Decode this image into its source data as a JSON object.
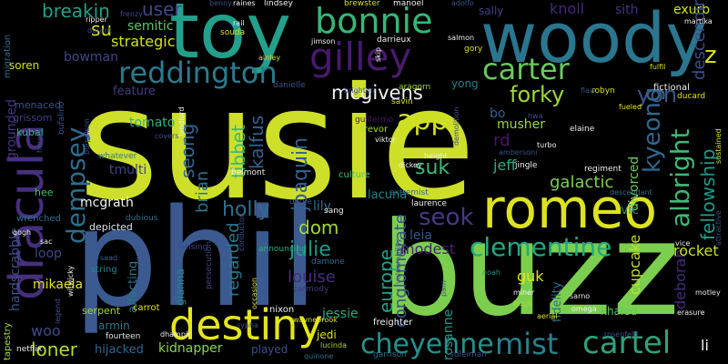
{
  "words": [
    {
      "text": "susie",
      "color": "#cddf29",
      "rotated": false
    },
    {
      "text": "phil",
      "color": "#3b5a8f",
      "rotated": false
    },
    {
      "text": "buzz",
      "color": "#7ccf4e",
      "rotated": false
    },
    {
      "text": "woody",
      "color": "#2a768e",
      "rotated": false
    },
    {
      "text": "toy",
      "color": "#23a08c",
      "rotated": false
    },
    {
      "text": "dracula",
      "color": "#46307e",
      "rotated": true
    },
    {
      "text": "romeo",
      "color": "#dde320",
      "rotated": false
    },
    {
      "text": "destiny",
      "color": "#e3e51c",
      "rotated": false
    },
    {
      "text": "bonnie",
      "color": "#35b779",
      "rotated": false
    },
    {
      "text": "gilley",
      "color": "#481a6c",
      "rotated": false
    },
    {
      "text": "reddington",
      "color": "#2b7b8e",
      "rotated": false
    },
    {
      "text": "carter",
      "color": "#67cc5c",
      "rotated": false
    },
    {
      "text": "app",
      "color": "#d0e11c",
      "rotated": false
    },
    {
      "text": "mist",
      "color": "#26828e",
      "rotated": false
    },
    {
      "text": "cartel",
      "color": "#2da37d",
      "rotated": false
    },
    {
      "text": "cheyenne",
      "color": "#26918c",
      "rotated": false
    },
    {
      "text": "clementine",
      "color": "#22a884",
      "rotated": false
    },
    {
      "text": "dempsey",
      "color": "#2e6d8e",
      "rotated": true
    },
    {
      "text": "albright",
      "color": "#40ba75",
      "rotated": true
    },
    {
      "text": "mcgivens",
      "color": "#f1f1f1",
      "rotated": false
    },
    {
      "text": "forky",
      "color": "#9dd93b",
      "rotated": false
    },
    {
      "text": "yon",
      "color": "#39558c",
      "rotated": false
    },
    {
      "text": "kyeong",
      "color": "#31688e",
      "rotated": true
    },
    {
      "text": "fellowship",
      "color": "#1f9a8a",
      "rotated": true
    },
    {
      "text": "joaquin",
      "color": "#355f8d",
      "rotated": true
    },
    {
      "text": "seok",
      "color": "#443a83",
      "rotated": false
    },
    {
      "text": "suk",
      "color": "#3bbb75",
      "rotated": false
    },
    {
      "text": "jeff",
      "color": "#2ab07f",
      "rotated": false
    },
    {
      "text": "galactic",
      "color": "#7ad151",
      "rotated": false
    },
    {
      "text": "europe",
      "color": "#1fa188",
      "rotated": true
    },
    {
      "text": "conglomerate",
      "color": "#3b528b",
      "rotated": true
    },
    {
      "text": "julie",
      "color": "#1e9b8a",
      "rotated": false
    },
    {
      "text": "louise",
      "color": "#472d7b",
      "rotated": false
    },
    {
      "text": "dom",
      "color": "#a0da39",
      "rotated": false
    },
    {
      "text": "holly",
      "color": "#2e6e8e",
      "rotated": false
    },
    {
      "text": "leia",
      "color": "#38588c",
      "rotated": false
    },
    {
      "text": "modest",
      "color": "#481f70",
      "rotated": false
    },
    {
      "text": "jessie",
      "color": "#28ae80",
      "rotated": false
    },
    {
      "text": "regarded",
      "color": "#2a778e",
      "rotated": true
    },
    {
      "text": "tibbet",
      "color": "#38b977",
      "rotated": true
    },
    {
      "text": "kalfus",
      "color": "#34608d",
      "rotated": true
    },
    {
      "text": "seong",
      "color": "#31668e",
      "rotated": true
    },
    {
      "text": "brian",
      "color": "#2d708e",
      "rotated": true
    },
    {
      "text": "strategic",
      "color": "#d2e21b",
      "rotated": false
    },
    {
      "text": "breakin",
      "color": "#20a386",
      "rotated": false
    },
    {
      "text": "user",
      "color": "#3e4989",
      "rotated": false
    },
    {
      "text": "su",
      "color": "#dfe318",
      "rotated": false
    },
    {
      "text": "bowman",
      "color": "#3f4788",
      "rotated": false
    },
    {
      "text": "semitic",
      "color": "#5cc863",
      "rotated": false
    },
    {
      "text": "feature",
      "color": "#443b84",
      "rotated": false
    },
    {
      "text": "tomato",
      "color": "#2db27d",
      "rotated": false
    },
    {
      "text": "tmulti",
      "color": "#404688",
      "rotated": false
    },
    {
      "text": "mcgrath",
      "color": "#f4f4f4",
      "rotated": false
    },
    {
      "text": "woo",
      "color": "#3e4a89",
      "rotated": false
    },
    {
      "text": "loner",
      "color": "#b5de2b",
      "rotated": false
    },
    {
      "text": "hijacked",
      "color": "#31678e",
      "rotated": false
    },
    {
      "text": "kidnapper",
      "color": "#85d54a",
      "rotated": false
    },
    {
      "text": "played",
      "color": "#3a538b",
      "rotated": false
    },
    {
      "text": "mikaela",
      "color": "#e7e419",
      "rotated": false
    },
    {
      "text": "loop",
      "color": "#3f4889",
      "rotated": false
    },
    {
      "text": "hardscrabble",
      "color": "#3a548c",
      "rotated": true
    },
    {
      "text": "grounded",
      "color": "#46337f",
      "rotated": true
    },
    {
      "text": "knoll",
      "color": "#472a7a",
      "rotated": false
    },
    {
      "text": "sith",
      "color": "#453581",
      "rotated": false
    },
    {
      "text": "exurb",
      "color": "#d8e219",
      "rotated": false
    },
    {
      "text": "descending",
      "color": "#3c4f8a",
      "rotated": true
    },
    {
      "text": "sally",
      "color": "#433e85",
      "rotated": false
    },
    {
      "text": "musher",
      "color": "#9bd93c",
      "rotated": false
    },
    {
      "text": "divorced",
      "color": "#6ccd5a",
      "rotated": true
    },
    {
      "text": "cupcake",
      "color": "#c2df23",
      "rotated": true
    },
    {
      "text": "deborah",
      "color": "#472c7a",
      "rotated": true
    },
    {
      "text": "rocket",
      "color": "#cae11f",
      "rotated": false
    },
    {
      "text": "khaled",
      "color": "#5ec962",
      "rotated": false
    },
    {
      "text": "vic",
      "color": "#23898e",
      "rotated": false
    },
    {
      "text": "guk",
      "color": "#e5e419",
      "rotated": false
    },
    {
      "text": "fidelity",
      "color": "#2c728e",
      "rotated": true
    },
    {
      "text": "armin",
      "color": "#2a788e",
      "rotated": false
    },
    {
      "text": "gianna",
      "color": "#24878e",
      "rotated": true
    },
    {
      "text": "affecting",
      "color": "#2c738e",
      "rotated": true
    },
    {
      "text": "rosanne",
      "color": "#1f988b",
      "rotated": true
    },
    {
      "text": "lily",
      "color": "#2d718e",
      "rotated": false
    },
    {
      "text": "lacuna",
      "color": "#25848e",
      "rotated": false
    },
    {
      "text": "rd",
      "color": "#481769",
      "rotated": false
    },
    {
      "text": "bo",
      "color": "#34618d",
      "rotated": false
    },
    {
      "text": "yong",
      "color": "#26818e",
      "rotated": false
    },
    {
      "text": "li",
      "color": "#f4f4f4",
      "rotated": false
    },
    {
      "text": "soren",
      "color": "#d5e21a",
      "rotated": false
    },
    {
      "text": "grissom",
      "color": "#433d84",
      "rotated": false
    },
    {
      "text": "kubal",
      "color": "#32b67a",
      "rotated": false
    },
    {
      "text": "hee",
      "color": "#46c06f",
      "rotated": false
    },
    {
      "text": "menaced",
      "color": "#3b518b",
      "rotated": false
    },
    {
      "text": "migration",
      "color": "#2e6f8e",
      "rotated": true
    },
    {
      "text": "tapestry",
      "color": "#a8db34",
      "rotated": true
    },
    {
      "text": "wrenched",
      "color": "#2c718e",
      "rotated": false
    },
    {
      "text": "whatever",
      "color": "#297a8e",
      "rotated": false
    },
    {
      "text": "depicted",
      "color": "#dbe5ed",
      "rotated": false
    },
    {
      "text": "dubious",
      "color": "#2e6e8e",
      "rotated": false
    },
    {
      "text": "helsing",
      "color": "#404688",
      "rotated": false
    },
    {
      "text": "saad",
      "color": "#32658e",
      "rotated": false
    },
    {
      "text": "string",
      "color": "#277f8e",
      "rotated": false
    },
    {
      "text": "serpent",
      "color": "#a5db36",
      "rotated": false
    },
    {
      "text": "carrot",
      "color": "#e6e419",
      "rotated": false
    },
    {
      "text": "fourteen",
      "color": "#e4e5e7",
      "rotated": false
    },
    {
      "text": "nixon",
      "color": "#ebeef0",
      "rotated": false
    },
    {
      "text": "announcing",
      "color": "#2ab07f",
      "rotated": false
    },
    {
      "text": "damone",
      "color": "#2e6e8e",
      "rotated": false
    },
    {
      "text": "carmody",
      "color": "#46337f",
      "rotated": false
    },
    {
      "text": "sang",
      "color": "#f0f0f0",
      "rotated": false
    },
    {
      "text": "persecution",
      "color": "#404688",
      "rotated": true
    },
    {
      "text": "jedi",
      "color": "#dde318",
      "rotated": false
    },
    {
      "text": "quinone",
      "color": "#2e6e8e",
      "rotated": false
    },
    {
      "text": "garrison",
      "color": "#2d708e",
      "rotated": false
    },
    {
      "text": "suleiman",
      "color": "#3b528b",
      "rotated": false
    },
    {
      "text": "lucinda",
      "color": "#a8db34",
      "rotated": false
    },
    {
      "text": "freighter",
      "color": "#f0f0f0",
      "rotated": false
    },
    {
      "text": "noah",
      "color": "#1f948c",
      "rotated": false
    },
    {
      "text": "erasure",
      "color": "#f0f0f0",
      "rotated": false
    },
    {
      "text": "motley",
      "color": "#e0e0e0",
      "rotated": false
    },
    {
      "text": "omega",
      "color": "#f0f0f0",
      "rotated": false
    },
    {
      "text": "sarno",
      "color": "#e8e8e8",
      "rotated": false
    },
    {
      "text": "hugh",
      "color": "#a5db36",
      "rotated": false
    },
    {
      "text": "laurence",
      "color": "#f0f0f0",
      "rotated": false
    },
    {
      "text": "extremist",
      "color": "#2e6e8e",
      "rotated": false
    },
    {
      "text": "culture",
      "color": "#4ac16d",
      "rotated": false
    },
    {
      "text": "trevor",
      "color": "#a5db36",
      "rotated": false
    },
    {
      "text": "guillermo",
      "color": "#481769",
      "rotated": false
    },
    {
      "text": "savin",
      "color": "#dde318",
      "rotated": false
    },
    {
      "text": "aragorn",
      "color": "#a5db36",
      "rotated": false
    },
    {
      "text": "brighton",
      "color": "#3e4989",
      "rotated": false
    },
    {
      "text": "danielle",
      "color": "#3b528b",
      "rotated": false
    },
    {
      "text": "ainley",
      "color": "#d8e219",
      "rotated": false
    },
    {
      "text": "jimson",
      "color": "#f0f0f0",
      "rotated": false
    },
    {
      "text": "souda",
      "color": "#dde318",
      "rotated": false
    },
    {
      "text": "raines",
      "color": "#f0f0f0",
      "rotated": false
    },
    {
      "text": "lindsey",
      "color": "#f0f0f0",
      "rotated": false
    },
    {
      "text": "benny",
      "color": "#3b528b",
      "rotated": false
    },
    {
      "text": "rail",
      "color": "#f0f0f0",
      "rotated": false
    },
    {
      "text": "frenzy",
      "color": "#3e4989",
      "rotated": false
    },
    {
      "text": "ripper",
      "color": "#f0f0f0",
      "rotated": false
    },
    {
      "text": "durant",
      "color": "#3b528b",
      "rotated": false
    },
    {
      "text": "brewster",
      "color": "#d0e11c",
      "rotated": false
    },
    {
      "text": "manoel",
      "color": "#f0f0f0",
      "rotated": false
    },
    {
      "text": "adolfo",
      "color": "#3b528b",
      "rotated": false
    },
    {
      "text": "darrieux",
      "color": "#f0f0f0",
      "rotated": false
    },
    {
      "text": "salmon",
      "color": "#f0f0f0",
      "rotated": false
    },
    {
      "text": "gory",
      "color": "#d8e219",
      "rotated": false
    },
    {
      "text": "robyn",
      "color": "#d8e219",
      "rotated": false
    },
    {
      "text": "flaw",
      "color": "#3b528b",
      "rotated": false
    },
    {
      "text": "fueled",
      "color": "#dde318",
      "rotated": false
    },
    {
      "text": "fulfil",
      "color": "#d0e11c",
      "rotated": false
    },
    {
      "text": "fictional",
      "color": "#f0f0f0",
      "rotated": false
    },
    {
      "text": "ducard",
      "color": "#dde318",
      "rotated": false
    },
    {
      "text": "martika",
      "color": "#f0f0f0",
      "rotated": false
    },
    {
      "text": "turbo",
      "color": "#f0f0f0",
      "rotated": false
    },
    {
      "text": "elaine",
      "color": "#f0f0f0",
      "rotated": false
    },
    {
      "text": "regiment",
      "color": "#f0f0f0",
      "rotated": false
    },
    {
      "text": "jingle",
      "color": "#f0f0f0",
      "rotated": false
    },
    {
      "text": "descendant",
      "color": "#2e6e8e",
      "rotated": false
    },
    {
      "text": "ambersoni",
      "color": "#3b528b",
      "rotated": false
    },
    {
      "text": "height",
      "color": "#f0f0f0",
      "rotated": false
    },
    {
      "text": "dickey",
      "color": "#f0f0f0",
      "rotated": false
    },
    {
      "text": "viktor",
      "color": "#f0f0f0",
      "rotated": false
    },
    {
      "text": "hwa",
      "color": "#3b528b",
      "rotated": false
    },
    {
      "text": "belmont",
      "color": "#f0f0f0",
      "rotated": false
    },
    {
      "text": "landlord",
      "color": "#f0f0f0",
      "rotated": true
    },
    {
      "text": "covers",
      "color": "#3b528b",
      "rotated": false
    },
    {
      "text": "bufalino",
      "color": "#3b528b",
      "rotated": true
    },
    {
      "text": "burpelson",
      "color": "#3b528b",
      "rotated": true
    },
    {
      "text": "conductor",
      "color": "#3b528b",
      "rotated": true
    },
    {
      "text": "witwicky",
      "color": "#f0f0f0",
      "rotated": true
    },
    {
      "text": "netflix",
      "color": "#f0f0f0",
      "rotated": false
    },
    {
      "text": "sac",
      "color": "#f0f0f0",
      "rotated": false
    },
    {
      "text": "gogh",
      "color": "#f0f0f0",
      "rotated": false
    },
    {
      "text": "legend",
      "color": "#3b528b",
      "rotated": true
    },
    {
      "text": "occasion",
      "color": "#dde318",
      "rotated": true
    },
    {
      "text": "waynebrook",
      "color": "#dde318",
      "rotated": false
    },
    {
      "text": "aerial",
      "color": "#dde318",
      "rotated": false
    },
    {
      "text": "miner",
      "color": "#f0f0f0",
      "rotated": false
    },
    {
      "text": "pam",
      "color": "#3b528b",
      "rotated": true
    },
    {
      "text": "vice",
      "color": "#f0f0f0",
      "rotated": false
    },
    {
      "text": "attractive",
      "color": "#3b528b",
      "rotated": true
    },
    {
      "text": "sustained",
      "color": "#dde318",
      "rotated": true
    },
    {
      "text": "rosenfeld",
      "color": "#3b528b",
      "rotated": false
    },
    {
      "text": "dhampir",
      "color": "#f0f0f0",
      "rotated": false
    },
    {
      "text": "sypha",
      "color": "#3b528b",
      "rotated": false
    },
    {
      "text": "oogie",
      "color": "#3b528b",
      "rotated": false
    },
    {
      "text": "skip",
      "color": "#f0f0f0",
      "rotated": true
    },
    {
      "text": "heroin",
      "color": "#3b528b",
      "rotated": true
    },
    {
      "text": "z",
      "color": "#dde318",
      "rotated": false
    },
    {
      "text": "demolition",
      "color": "#3b528b",
      "rotated": true
    },
    {
      "text": "vulnerability",
      "color": "#3b528b",
      "rotated": true
    }
  ]
}
